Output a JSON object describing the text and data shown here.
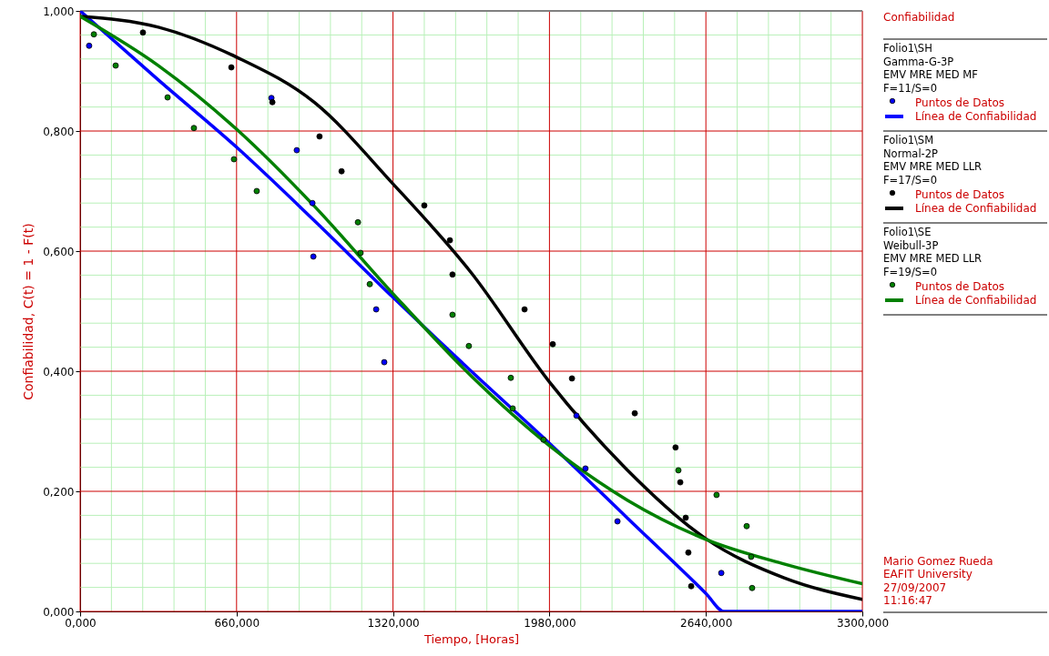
{
  "chart_data": {
    "type": "scatter",
    "legend_title": "Confiabilidad",
    "xlabel": "Tiempo, [Horas]",
    "ylabel": "Confiabilidad, C(t) = 1 - F(t)",
    "xlim": [
      0,
      3300
    ],
    "ylim": [
      0,
      1
    ],
    "xticks": [
      {
        "value": 0,
        "label": "0,000"
      },
      {
        "value": 132,
        "label": null
      },
      {
        "value": 264,
        "label": null
      },
      {
        "value": 396,
        "label": null
      },
      {
        "value": 528,
        "label": null
      },
      {
        "value": 660,
        "label": "660,000"
      },
      {
        "value": 792,
        "label": null
      },
      {
        "value": 924,
        "label": null
      },
      {
        "value": 1056,
        "label": null
      },
      {
        "value": 1188,
        "label": null
      },
      {
        "value": 1320,
        "label": "1320,000"
      },
      {
        "value": 1452,
        "label": null
      },
      {
        "value": 1584,
        "label": null
      },
      {
        "value": 1716,
        "label": null
      },
      {
        "value": 1848,
        "label": null
      },
      {
        "value": 1980,
        "label": "1980,000"
      },
      {
        "value": 2112,
        "label": null
      },
      {
        "value": 2244,
        "label": null
      },
      {
        "value": 2376,
        "label": null
      },
      {
        "value": 2508,
        "label": null
      },
      {
        "value": 2640,
        "label": "2640,000"
      },
      {
        "value": 2772,
        "label": null
      },
      {
        "value": 2904,
        "label": null
      },
      {
        "value": 3036,
        "label": null
      },
      {
        "value": 3168,
        "label": null
      },
      {
        "value": 3300,
        "label": "3300,000"
      }
    ],
    "yticks": [
      {
        "value": 0,
        "label": "0,000"
      },
      {
        "value": 0.04,
        "label": null
      },
      {
        "value": 0.08,
        "label": null
      },
      {
        "value": 0.12,
        "label": null
      },
      {
        "value": 0.16,
        "label": null
      },
      {
        "value": 0.2,
        "label": "0,200"
      },
      {
        "value": 0.24,
        "label": null
      },
      {
        "value": 0.28,
        "label": null
      },
      {
        "value": 0.32,
        "label": null
      },
      {
        "value": 0.36,
        "label": null
      },
      {
        "value": 0.4,
        "label": "0,400"
      },
      {
        "value": 0.44,
        "label": null
      },
      {
        "value": 0.48,
        "label": null
      },
      {
        "value": 0.52,
        "label": null
      },
      {
        "value": 0.56,
        "label": null
      },
      {
        "value": 0.6,
        "label": "0,600"
      },
      {
        "value": 0.64,
        "label": null
      },
      {
        "value": 0.68,
        "label": null
      },
      {
        "value": 0.72,
        "label": null
      },
      {
        "value": 0.76,
        "label": null
      },
      {
        "value": 0.8,
        "label": "0,800"
      },
      {
        "value": 0.84,
        "label": null
      },
      {
        "value": 0.88,
        "label": null
      },
      {
        "value": 0.92,
        "label": null
      },
      {
        "value": 0.96,
        "label": null
      },
      {
        "value": 1,
        "label": "1,000"
      }
    ],
    "grid": true,
    "legend": "right",
    "marker": "circle",
    "line_style": "solid",
    "annotations": [
      "Folio1\\SH\nGamma-G-3P\nEMV MRE MED MF\nF=11/S=0",
      "Folio1\\SM\nNormal-2P\nEMV MRE MED LLR\nF=17/S=0",
      "Folio1\\SE\nWeibull-3P\nEMV MRE MED LLR\nF=19/S=0",
      "Mario Gomez Rueda\nEAFIT University\n27/09/2007\n11:16:47"
    ],
    "series": [
      {
        "name": "Puntos de Datos",
        "color": "#0000ff",
        "x": [
          38,
          807,
          914,
          980,
          984,
          1249,
          1283,
          2094,
          2132,
          2267,
          2705
        ],
        "values": [
          0.942,
          0.855,
          0.768,
          0.68,
          0.591,
          0.503,
          0.415,
          0.326,
          0.238,
          0.15,
          0.064
        ]
      },
      {
        "name": "Línea de Confiabilidad",
        "type": "line",
        "marker": "none",
        "color": "#0000ff",
        "x": [
          0,
          330,
          660,
          990,
          1320,
          1650,
          1980,
          2310,
          2640,
          2716,
          3300
        ],
        "values": [
          1.0,
          0.885,
          0.773,
          0.65,
          0.523,
          0.4,
          0.28,
          0.155,
          0.03,
          0,
          0
        ]
      },
      {
        "name": "Puntos de Datos",
        "color": "#000000",
        "x": [
          265,
          638,
          811,
          1010,
          1103,
          1452,
          1560,
          1571,
          1875,
          1994,
          2075,
          2340,
          2512,
          2532,
          2555,
          2566,
          2578
        ],
        "values": [
          0.964,
          0.906,
          0.848,
          0.791,
          0.733,
          0.676,
          0.618,
          0.561,
          0.503,
          0.445,
          0.388,
          0.33,
          0.273,
          0.215,
          0.156,
          0.098,
          0.042
        ]
      },
      {
        "name": "Línea de Confiabilidad",
        "type": "line",
        "marker": "none",
        "color": "#000000",
        "x": [
          0,
          330,
          660,
          990,
          1320,
          1650,
          1980,
          2310,
          2640,
          2970,
          3300
        ],
        "values": [
          0.991,
          0.973,
          0.923,
          0.847,
          0.712,
          0.564,
          0.382,
          0.235,
          0.121,
          0.056,
          0.02
        ]
      },
      {
        "name": "Puntos de Datos",
        "color": "#008000",
        "x": [
          58,
          150,
          369,
          480,
          649,
          745,
          1172,
          1183,
          1222,
          1571,
          1640,
          1817,
          1825,
          1955,
          2524,
          2685,
          2812,
          2831,
          2835
        ],
        "values": [
          0.961,
          0.909,
          0.856,
          0.805,
          0.753,
          0.7,
          0.648,
          0.597,
          0.545,
          0.494,
          0.442,
          0.389,
          0.338,
          0.286,
          0.235,
          0.194,
          0.142,
          0.091,
          0.039
        ]
      },
      {
        "name": "Línea de Confiabilidad",
        "type": "line",
        "marker": "none",
        "color": "#008000",
        "x": [
          0,
          330,
          660,
          990,
          1320,
          1650,
          1980,
          2310,
          2640,
          2970,
          3300
        ],
        "values": [
          0.991,
          0.909,
          0.803,
          0.674,
          0.529,
          0.392,
          0.276,
          0.185,
          0.12,
          0.079,
          0.046
        ]
      }
    ]
  }
}
